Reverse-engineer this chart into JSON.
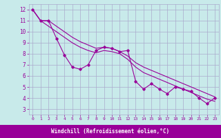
{
  "x": [
    0,
    1,
    2,
    3,
    4,
    5,
    6,
    7,
    8,
    9,
    10,
    11,
    12,
    13,
    14,
    15,
    16,
    17,
    18,
    19,
    20,
    21,
    22,
    23
  ],
  "y_main": [
    12,
    11,
    11,
    9.4,
    7.9,
    6.8,
    6.6,
    7.0,
    8.3,
    8.6,
    8.5,
    8.2,
    8.3,
    5.5,
    4.8,
    5.3,
    4.8,
    4.4,
    5.0,
    4.8,
    4.6,
    4.0,
    3.5,
    4.0
  ],
  "y_upper": [
    12,
    11,
    11,
    10.5,
    10.0,
    9.5,
    9.1,
    8.8,
    8.5,
    8.6,
    8.5,
    8.2,
    7.8,
    7.2,
    6.8,
    6.5,
    6.2,
    5.9,
    5.6,
    5.3,
    5.0,
    4.7,
    4.4,
    4.1
  ],
  "y_lower": [
    12,
    11,
    10.5,
    10.0,
    9.5,
    9.0,
    8.6,
    8.3,
    8.1,
    8.3,
    8.2,
    8.0,
    7.5,
    6.8,
    6.3,
    6.0,
    5.7,
    5.4,
    5.1,
    4.8,
    4.5,
    4.2,
    3.9,
    3.7
  ],
  "line_color": "#990099",
  "bg_color": "#c8eaea",
  "plot_bg": "#c8eaea",
  "grid_color": "#aaaacc",
  "xlabel": "Windchill (Refroidissement éolien,°C)",
  "xlabel_bg": "#990099",
  "xlabel_fg": "#ffffff",
  "ylabel_ticks": [
    3,
    4,
    5,
    6,
    7,
    8,
    9,
    10,
    11,
    12
  ],
  "xlim": [
    -0.5,
    23.5
  ],
  "ylim": [
    2.5,
    12.5
  ],
  "xticks": [
    0,
    1,
    2,
    3,
    4,
    5,
    6,
    7,
    8,
    9,
    10,
    11,
    12,
    13,
    14,
    15,
    16,
    17,
    18,
    19,
    20,
    21,
    22,
    23
  ]
}
